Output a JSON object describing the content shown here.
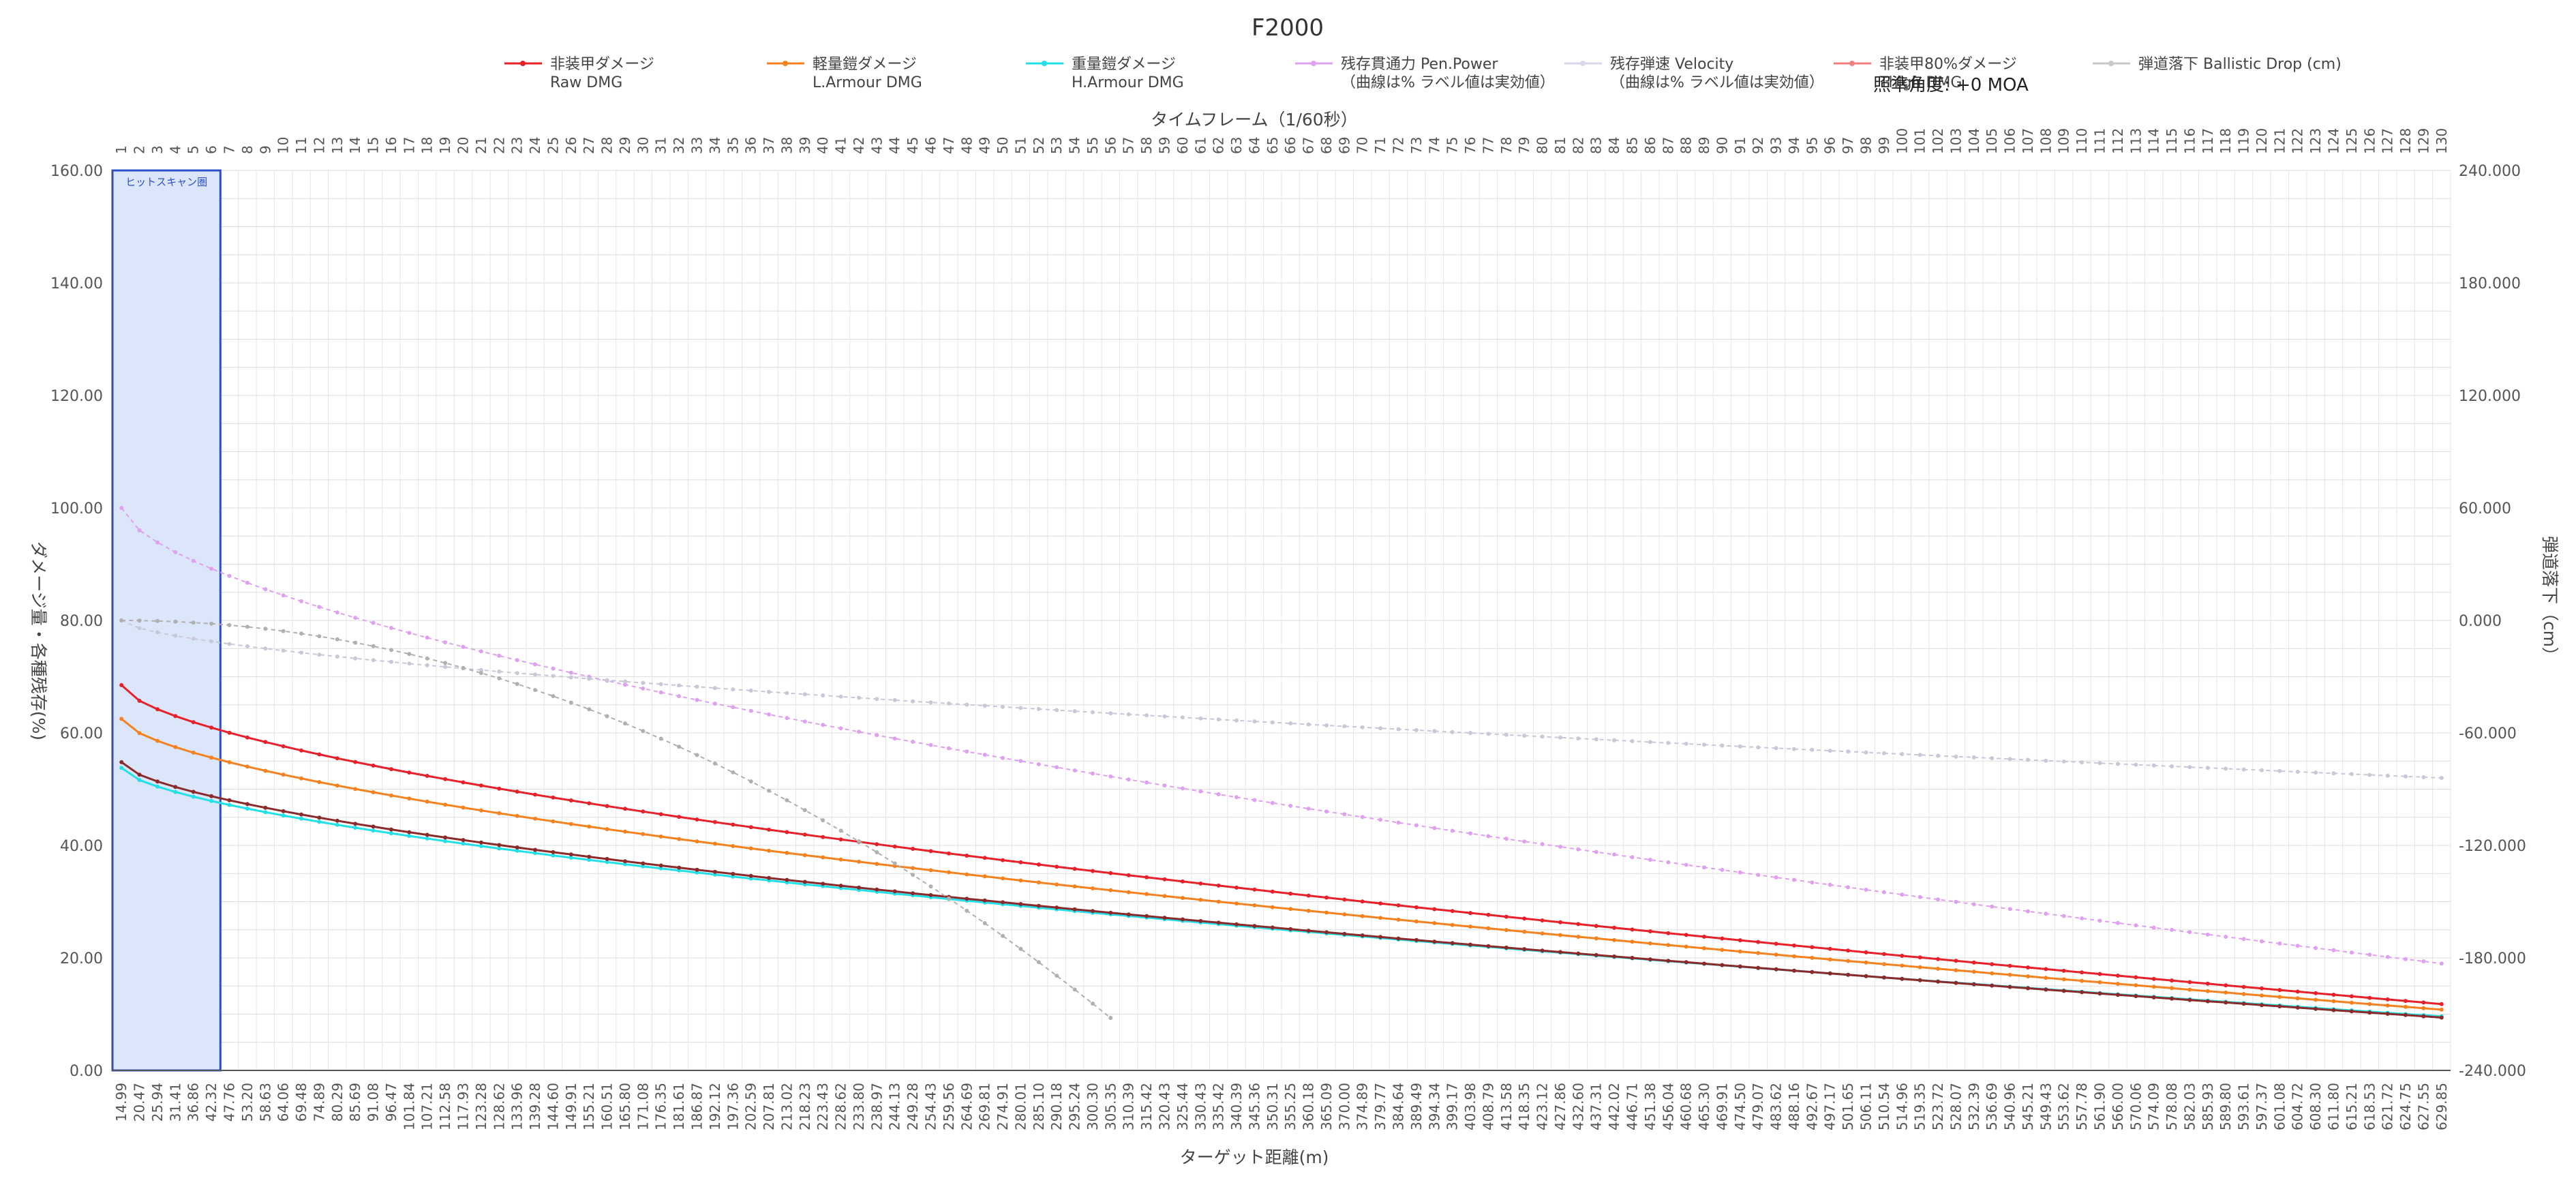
{
  "chart_data": {
    "type": "line",
    "title": "F2000",
    "top_xlabel": "タイムフレーム（1/60秒）",
    "bottom_xlabel": "ターゲット距離(m)",
    "ylabel": "ダメージ量・各種残存(%)",
    "y2label": "弾道落下（cm）",
    "ylim": [
      0,
      160
    ],
    "y2lim": [
      -240,
      240
    ],
    "yticks": [
      "0.00",
      "20.00",
      "40.00",
      "60.00",
      "80.00",
      "100.00",
      "120.00",
      "140.00",
      "160.00"
    ],
    "y2ticks": [
      "-240.000",
      "-180.000",
      "-120.000",
      "-60.000",
      "0.000",
      "60.000",
      "120.000",
      "180.000",
      "240.000"
    ],
    "frames": [
      1,
      130
    ],
    "distance_start": 14.99,
    "distance_end": 629.85,
    "hitscan_label": "ヒットスキャン圏",
    "hitscan_frames": [
      1,
      6
    ],
    "aim_label": "照準角度: +0 MOA",
    "legend": [
      {
        "name": "非装甲ダメージ",
        "sub": "Raw DMG",
        "color": "#e8202a"
      },
      {
        "name": "軽量鎧ダメージ",
        "sub": "L.Armour DMG",
        "color": "#f5821f"
      },
      {
        "name": "重量鎧ダメージ",
        "sub": "H.Armour DMG",
        "color": "#22e0e8"
      },
      {
        "name": "残存貫通力 Pen.Power",
        "sub": "（曲線は% ラベル値は実効値）",
        "color": "#e0a0f0"
      },
      {
        "name": "残存弾速 Velocity",
        "sub": "（曲線は% ラベル値は実効値）",
        "color": "#d8d8e8"
      },
      {
        "name": "非装甲80%ダメージ",
        "sub": "Thigh DMG",
        "color": "#f08080"
      },
      {
        "name": "弾道落下 Ballistic Drop (cm)",
        "sub": "",
        "color": "#c8c8c8"
      }
    ],
    "series": [
      {
        "name": "Raw DMG",
        "color": "#e8202a",
        "start": 68.5,
        "end": 11.8,
        "k": 1.55
      },
      {
        "name": "L.Armour DMG",
        "color": "#f5821f",
        "start": 62.5,
        "end": 10.8,
        "k": 1.55
      },
      {
        "name": "H.Armour DMG",
        "color": "#22e0e8",
        "start": 53.8,
        "end": 9.6,
        "k": 1.55
      },
      {
        "name": "Thigh DMG",
        "color": "#8b2a2a",
        "start": 54.8,
        "end": 9.4,
        "k": 1.55
      },
      {
        "name": "Pen.Power",
        "color": "#e0a0f0",
        "start": 100.0,
        "end": 19.0,
        "k": 1.3
      },
      {
        "name": "Velocity",
        "color": "#c8c8d8",
        "start": 80.0,
        "end": 52.0,
        "k": 1.0
      },
      {
        "name": "Ballistic Drop",
        "color": "#b0b0b0",
        "start_cm": 0.0,
        "end_cm": -212.0,
        "end_frame": 56
      }
    ]
  }
}
